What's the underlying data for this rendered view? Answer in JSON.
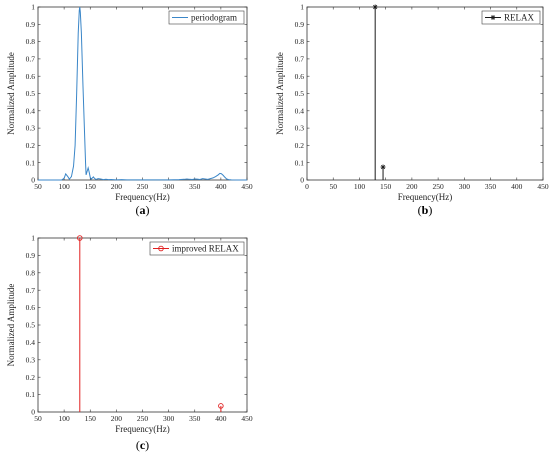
{
  "figure": {
    "panels": [
      {
        "id": "a",
        "caption": "(a)",
        "caption_letter": "a",
        "chart_data": {
          "type": "line",
          "xlabel": "Frequency(Hz)",
          "ylabel": "Normalized Amplitude",
          "xlim": [
            50,
            450
          ],
          "ylim": [
            0,
            1
          ],
          "xticks": [
            50,
            100,
            150,
            200,
            250,
            300,
            350,
            400,
            450
          ],
          "yticks": [
            0,
            0.1,
            0.2,
            0.3,
            0.4,
            0.5,
            0.6,
            0.7,
            0.8,
            0.9,
            1
          ],
          "grid": false,
          "legend_position": "top-right",
          "series": [
            {
              "name": "periodogram",
              "color": "#3a86c8",
              "x": [
                50,
                95,
                100,
                103,
                107,
                110,
                114,
                116,
                118,
                121,
                124,
                127,
                129,
                130,
                131,
                133,
                136,
                139,
                141,
                142,
                144,
                146,
                148,
                150,
                152,
                154,
                156,
                158,
                161,
                165,
                170,
                175,
                180,
                185,
                190,
                200,
                210,
                220,
                240,
                260,
                280,
                300,
                320,
                330,
                335,
                340,
                345,
                350,
                355,
                360,
                365,
                370,
                375,
                380,
                385,
                390,
                395,
                398,
                401,
                404,
                407,
                411,
                415,
                420,
                430,
                450
              ],
              "y": [
                0,
                0,
                0.01,
                0.035,
                0.02,
                0.005,
                0.02,
                0.05,
                0.08,
                0.2,
                0.5,
                0.85,
                0.98,
                1.0,
                0.97,
                0.85,
                0.55,
                0.28,
                0.1,
                0.03,
                0.05,
                0.07,
                0.045,
                0.015,
                0.005,
                0.012,
                0.018,
                0.01,
                0.003,
                0.008,
                0.006,
                0.002,
                0.004,
                0.002,
                0.003,
                0.001,
                0.002,
                0.001,
                0.001,
                0.001,
                0.001,
                0.001,
                0.002,
                0.004,
                0.006,
                0.004,
                0.003,
                0.006,
                0.005,
                0.003,
                0.008,
                0.006,
                0.004,
                0.008,
                0.012,
                0.02,
                0.03,
                0.038,
                0.036,
                0.028,
                0.018,
                0.006,
                0.002,
                0.001,
                0,
                0
              ]
            }
          ]
        }
      },
      {
        "id": "b",
        "caption": "(b)",
        "caption_letter": "b",
        "chart_data": {
          "type": "stem",
          "xlabel": "Frequency(Hz)",
          "ylabel": "Normalized Amplitude",
          "xlim": [
            0,
            450
          ],
          "ylim": [
            0,
            1
          ],
          "xticks": [
            0,
            50,
            100,
            150,
            200,
            250,
            300,
            350,
            400,
            450
          ],
          "yticks": [
            0,
            0.1,
            0.2,
            0.3,
            0.4,
            0.5,
            0.6,
            0.7,
            0.8,
            0.9,
            1
          ],
          "grid": false,
          "legend_position": "top-right",
          "series": [
            {
              "name": "RELAX",
              "color": "#1a1a1a",
              "marker": "asterisk",
              "x": [
                130,
                145
              ],
              "y": [
                1.0,
                0.075
              ]
            }
          ]
        }
      },
      {
        "id": "c",
        "caption": "(c)",
        "caption_letter": "c",
        "chart_data": {
          "type": "stem",
          "xlabel": "Frequency(Hz)",
          "ylabel": "Normalized Amplitude",
          "xlim": [
            50,
            450
          ],
          "ylim": [
            0,
            1
          ],
          "xticks": [
            50,
            100,
            150,
            200,
            250,
            300,
            350,
            400,
            450
          ],
          "yticks": [
            0,
            0.1,
            0.2,
            0.3,
            0.4,
            0.5,
            0.6,
            0.7,
            0.8,
            0.9,
            1
          ],
          "grid": false,
          "legend_position": "top-right",
          "series": [
            {
              "name": "improved RELAX",
              "color": "#e02020",
              "marker": "circle",
              "x": [
                130,
                400
              ],
              "y": [
                1.0,
                0.035
              ]
            }
          ]
        }
      }
    ]
  }
}
